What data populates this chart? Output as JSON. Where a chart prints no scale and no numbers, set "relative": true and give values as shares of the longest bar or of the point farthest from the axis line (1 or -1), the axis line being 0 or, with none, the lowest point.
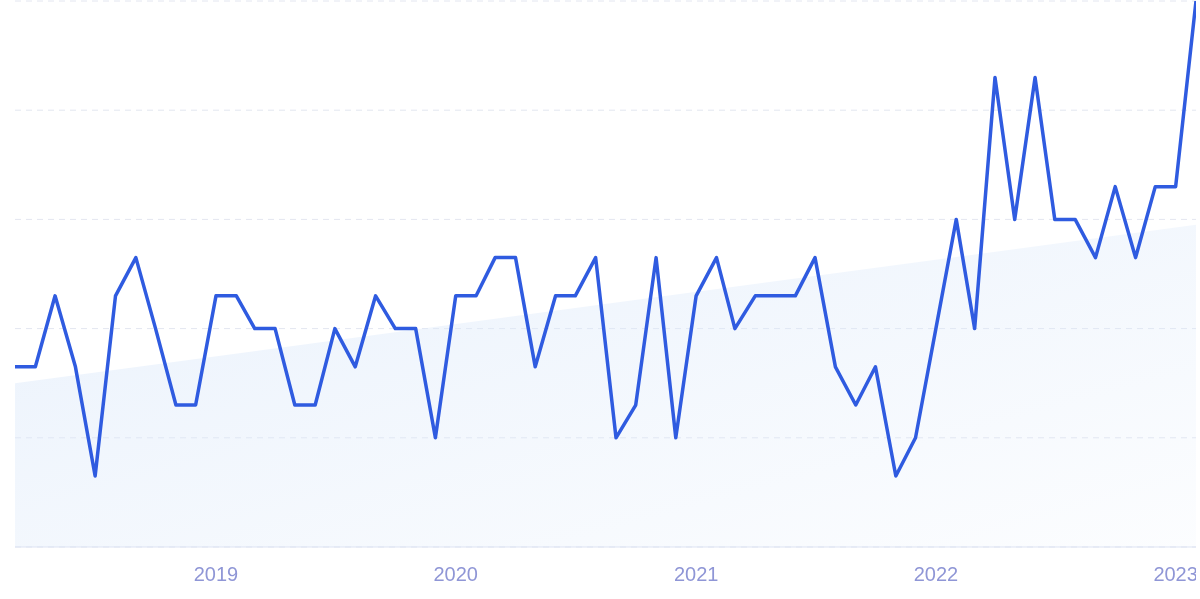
{
  "chart_data": {
    "type": "line",
    "relative": true,
    "x": [
      "2018-03",
      "2018-04",
      "2018-05",
      "2018-06",
      "2018-07",
      "2018-08",
      "2018-09",
      "2018-10",
      "2018-11",
      "2018-12",
      "2019-01",
      "2019-02",
      "2019-03",
      "2019-04",
      "2019-05",
      "2019-06",
      "2019-07",
      "2019-08",
      "2019-09",
      "2019-10",
      "2019-11",
      "2019-12",
      "2020-01",
      "2020-02",
      "2020-03",
      "2020-04",
      "2020-05",
      "2020-06",
      "2020-07",
      "2020-08",
      "2020-09",
      "2020-10",
      "2020-11",
      "2020-12",
      "2021-01",
      "2021-02",
      "2021-03",
      "2021-04",
      "2021-05",
      "2021-06",
      "2021-07",
      "2021-08",
      "2021-09",
      "2021-10",
      "2021-11",
      "2021-12",
      "2022-01",
      "2022-02",
      "2022-03",
      "2022-04",
      "2022-05",
      "2022-06",
      "2022-07",
      "2022-08",
      "2022-09",
      "2022-10",
      "2022-11",
      "2022-12",
      "2023-01",
      "2023-02"
    ],
    "series": [
      {
        "type": "area",
        "color": "#dce9fa",
        "x": [
          "2018-03",
          "2023-02"
        ],
        "values": [
          0.3,
          0.59
        ]
      },
      {
        "color": "#2f5be0",
        "values": [
          0.33,
          0.33,
          0.46,
          0.33,
          0.13,
          0.46,
          0.53,
          0.4,
          0.26,
          0.26,
          0.46,
          0.46,
          0.4,
          0.4,
          0.26,
          0.26,
          0.4,
          0.33,
          0.46,
          0.4,
          0.4,
          0.2,
          0.46,
          0.46,
          0.53,
          0.53,
          0.33,
          0.46,
          0.46,
          0.53,
          0.2,
          0.26,
          0.53,
          0.2,
          0.46,
          0.53,
          0.4,
          0.46,
          0.46,
          0.46,
          0.53,
          0.33,
          0.26,
          0.33,
          0.13,
          0.2,
          0.4,
          0.6,
          0.4,
          0.86,
          0.6,
          0.86,
          0.6,
          0.6,
          0.53,
          0.66,
          0.53,
          0.66,
          0.66,
          1
        ]
      }
    ],
    "xlim": [
      "2018-03",
      "2023-02"
    ],
    "xticks": [
      "2019",
      "2020",
      "2021",
      "2022",
      "2023"
    ],
    "grid": "y",
    "legend": false,
    "marker": "none",
    "line_style": "solid"
  }
}
